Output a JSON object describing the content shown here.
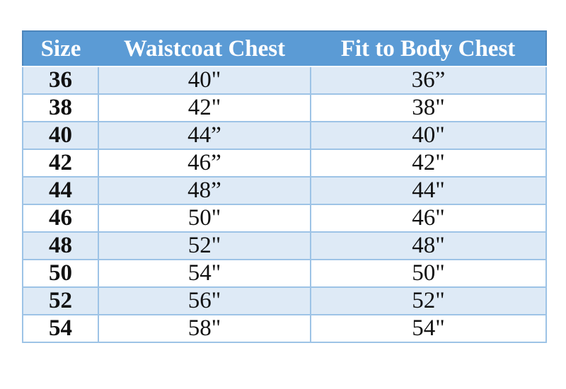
{
  "chart_data": {
    "type": "table",
    "columns": [
      "Size",
      "Waistcoat Chest",
      "Fit to Body Chest"
    ],
    "rows": [
      [
        "36",
        "40\"",
        "36”"
      ],
      [
        "38",
        "42\"",
        "38\""
      ],
      [
        "40",
        "44”",
        "40\""
      ],
      [
        "42",
        "46”",
        "42\""
      ],
      [
        "44",
        "48”",
        "44\""
      ],
      [
        "46",
        "50\"",
        "46\""
      ],
      [
        "48",
        "52\"",
        "48\""
      ],
      [
        "50",
        "54\"",
        "50\""
      ],
      [
        "52",
        "56\"",
        "52\""
      ],
      [
        "54",
        "58\"",
        "54\""
      ]
    ],
    "layout": {
      "header_position": "top",
      "zebra_striping": true,
      "alignment": "center",
      "grid": true
    }
  },
  "colors": {
    "header_bg": "#5B9BD5",
    "header_text": "#FFFFFF",
    "header_edge": "#4C86BC",
    "row_stripe_bg": "#DEEAF6",
    "row_bg": "#FFFFFF",
    "border": "#9DC3E6",
    "body_text": "#111111"
  }
}
